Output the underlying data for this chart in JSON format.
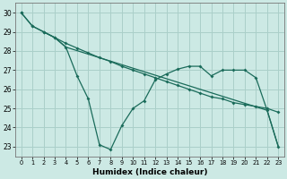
{
  "xlabel": "Humidex (Indice chaleur)",
  "bg_color": "#cce9e4",
  "grid_color": "#aacfc9",
  "line_color": "#1a6b5a",
  "xlim": [
    -0.5,
    23.5
  ],
  "ylim": [
    22.5,
    30.5
  ],
  "yticks": [
    23,
    24,
    25,
    26,
    27,
    28,
    29,
    30
  ],
  "xticks": [
    0,
    1,
    2,
    3,
    4,
    5,
    6,
    7,
    8,
    9,
    10,
    11,
    12,
    13,
    14,
    15,
    16,
    17,
    18,
    19,
    20,
    21,
    22,
    23
  ],
  "line1_x": [
    0,
    1,
    2,
    3,
    4,
    5,
    6,
    7,
    8,
    9,
    10,
    11,
    12,
    13,
    14,
    15,
    16,
    17,
    18,
    19,
    20,
    21,
    22,
    23
  ],
  "line1_y": [
    30.0,
    29.3,
    29.0,
    28.7,
    28.4,
    28.15,
    27.9,
    27.65,
    27.45,
    27.2,
    27.0,
    26.8,
    26.6,
    26.4,
    26.2,
    26.0,
    25.8,
    25.6,
    25.5,
    25.3,
    25.2,
    25.1,
    25.0,
    24.8
  ],
  "line2_x": [
    0,
    1,
    2,
    3,
    4,
    5,
    6,
    7,
    8,
    9,
    10,
    11,
    12,
    13,
    14,
    15,
    16,
    17,
    18,
    19,
    20,
    21,
    22,
    23
  ],
  "line2_y": [
    30.0,
    29.3,
    29.0,
    28.7,
    28.2,
    26.7,
    25.5,
    23.1,
    22.85,
    24.1,
    25.0,
    25.4,
    26.5,
    26.8,
    27.05,
    27.2,
    27.2,
    26.7,
    27.0,
    27.0,
    27.0,
    26.6,
    24.9,
    23.0
  ],
  "line3_x": [
    2,
    3,
    4,
    22,
    23
  ],
  "line3_y": [
    29.0,
    28.7,
    28.2,
    24.9,
    23.0
  ]
}
